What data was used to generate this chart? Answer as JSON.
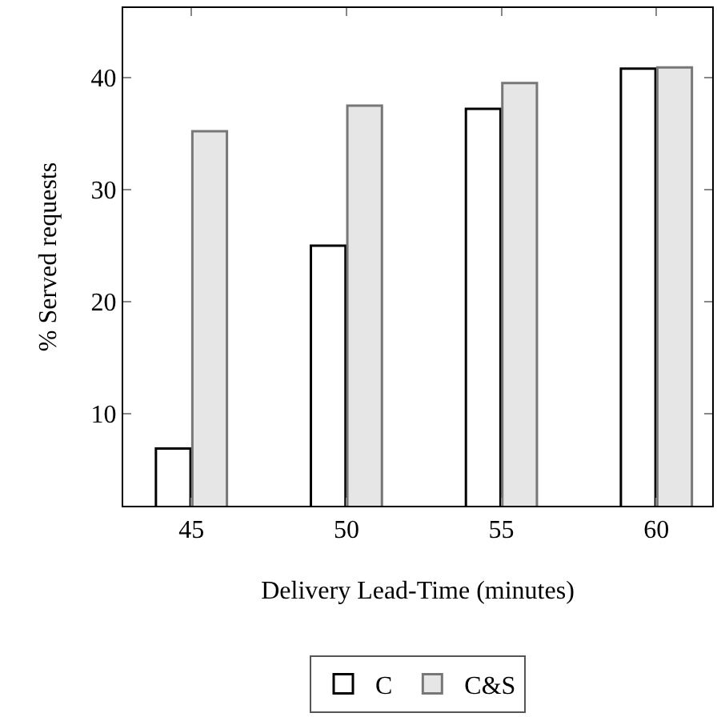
{
  "chart_data": {
    "type": "bar",
    "xlabel": "Delivery Lead-Time (minutes)",
    "ylabel": "% Served requests",
    "x": [
      45,
      50,
      55,
      60
    ],
    "series": [
      {
        "name": "C",
        "color": "#ffffff",
        "values": [
          6.9,
          25.0,
          37.2,
          40.8
        ]
      },
      {
        "name": "C&S",
        "color": "#e6e6e6",
        "values": [
          35.2,
          37.5,
          39.5,
          40.9
        ]
      }
    ],
    "xlim": [
      42.8,
      61.8
    ],
    "xticks": [
      45,
      50,
      55,
      60
    ],
    "ylim": [
      1.8,
      46.2
    ],
    "yticks": [
      10,
      20,
      30,
      40
    ],
    "grid": false,
    "legend": "bottom"
  }
}
